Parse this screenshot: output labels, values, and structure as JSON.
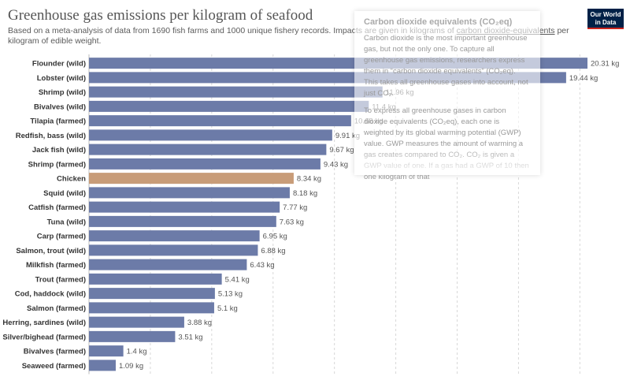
{
  "header": {
    "title": "Greenhouse gas emissions per kilogram of seafood",
    "subtitle_pre": "Based on a meta-analysis of data from 1690 fish farms and 1000 unique fishery records. Impacts are given in kilograms of ",
    "subtitle_link": "carbon dioxide-equivalents",
    "subtitle_post": " per kilogram of edible weight.",
    "logo_line1": "Our World",
    "logo_line2": "in Data"
  },
  "tooltip": {
    "title": "Carbon dioxide equivalents (CO₂eq)",
    "p1": "Carbon dioxide is the most important greenhouse gas, but not the only one. To capture all greenhouse gas emissions, researchers express them in “carbon dioxide equivalents” (CO₂eq). This takes all greenhouse gases into account, not just CO₂.",
    "p2": "To express all greenhouse gases in carbon dioxide equivalents (CO₂eq), each one is weighted by its global warming potential (GWP) value. GWP measures the amount of warming a gas creates compared to CO₂. CO₂ is given a GWP value of one. If a gas had a GWP of 10 then one kilogram of that"
  },
  "colors": {
    "bar": "#6c7ba8",
    "highlight": "#c89c78",
    "grid": "#d8d8d8",
    "label": "#333333",
    "value": "#555555"
  },
  "chart_data": {
    "type": "bar",
    "orientation": "horizontal",
    "unit": "kg",
    "highlighted": "Chicken",
    "xlim": [
      0,
      20.31
    ],
    "grid": true,
    "categories": [
      "Flounder (wild)",
      "Lobster (wild)",
      "Shrimp (wild)",
      "Bivalves (wild)",
      "Tilapia (farmed)",
      "Redfish, bass (wild)",
      "Jack fish (wild)",
      "Shrimp (farmed)",
      "Chicken",
      "Squid (wild)",
      "Catfish (farmed)",
      "Tuna (wild)",
      "Carp (farmed)",
      "Salmon, trout (wild)",
      "Milkfish (farmed)",
      "Trout (farmed)",
      "Cod, haddock (wild)",
      "Salmon (farmed)",
      "Herring, sardines (wild)",
      "Silver/bighead (farmed)",
      "Bivalves (farmed)",
      "Seaweed (farmed)"
    ],
    "values": [
      20.31,
      19.44,
      11.96,
      11.4,
      10.68,
      9.91,
      9.67,
      9.43,
      8.34,
      8.18,
      7.77,
      7.63,
      6.95,
      6.88,
      6.43,
      5.41,
      5.13,
      5.1,
      3.88,
      3.51,
      1.4,
      1.09
    ],
    "value_labels": [
      "20.31 kg",
      "19.44 kg",
      "11.96 kg",
      "11.4 kg",
      "10.68 kg",
      "9.91 kg",
      "9.67 kg",
      "9.43 kg",
      "8.34 kg",
      "8.18 kg",
      "7.77 kg",
      "7.63 kg",
      "6.95 kg",
      "6.88 kg",
      "6.43 kg",
      "5.41 kg",
      "5.13 kg",
      "5.1 kg",
      "3.88 kg",
      "3.51 kg",
      "1.4 kg",
      "1.09 kg"
    ]
  }
}
